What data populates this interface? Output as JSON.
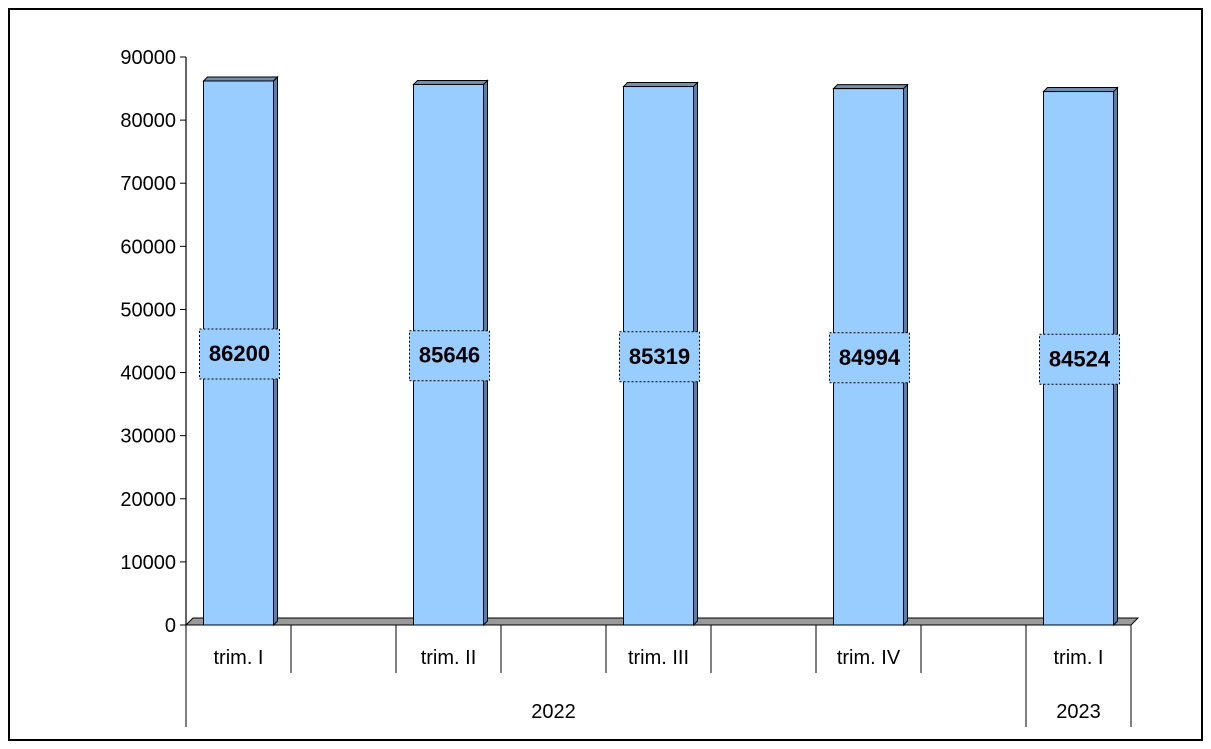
{
  "chart_data": {
    "type": "bar",
    "categories": [
      "trim. I",
      "trim. II",
      "trim. III",
      "trim. IV",
      "trim. I"
    ],
    "groups": [
      {
        "label": "2022",
        "span": [
          0,
          3
        ]
      },
      {
        "label": "2023",
        "span": [
          4,
          4
        ]
      }
    ],
    "values": [
      86200,
      85646,
      85319,
      84994,
      84524
    ],
    "data_labels": [
      "86200",
      "85646",
      "85319",
      "84994",
      "84524"
    ],
    "title": "",
    "xlabel": "",
    "ylabel": "",
    "ylim": [
      0,
      90000
    ],
    "yticks": [
      0,
      10000,
      20000,
      30000,
      40000,
      50000,
      60000,
      70000,
      80000,
      90000
    ],
    "grid": false,
    "legend": "none",
    "colors": {
      "bar_front": "#99CCFF",
      "bar_side": "#5A7FA6",
      "bar_top": "#6F8FB3",
      "axis": "#000000"
    }
  }
}
